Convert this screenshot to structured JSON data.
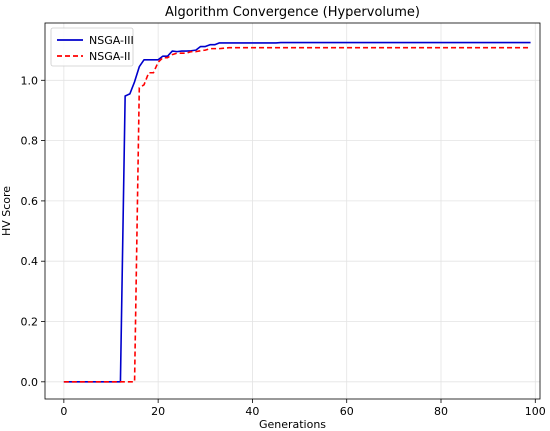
{
  "chart_data": {
    "type": "line",
    "title": "Algorithm Convergence (Hypervolume)",
    "xlabel": "Generations",
    "ylabel": "HV Score",
    "xlim": [
      -4,
      101
    ],
    "ylim": [
      -0.057,
      1.19
    ],
    "xticks": [
      0,
      20,
      40,
      60,
      80,
      100
    ],
    "yticks": [
      0.0,
      0.2,
      0.4,
      0.6,
      0.8,
      1.0
    ],
    "grid": true,
    "legend_position": "top-left",
    "series": [
      {
        "name": "NSGA-III",
        "color": "#0000cc",
        "style": "solid",
        "x": [
          0,
          1,
          2,
          3,
          4,
          5,
          6,
          7,
          8,
          9,
          10,
          11,
          12,
          13,
          14,
          15,
          16,
          17,
          18,
          19,
          20,
          21,
          22,
          23,
          24,
          25,
          26,
          27,
          28,
          29,
          30,
          31,
          32,
          33,
          34,
          35,
          40,
          45,
          46,
          50,
          60,
          70,
          80,
          90,
          99
        ],
        "y": [
          0,
          0,
          0,
          0,
          0,
          0,
          0,
          0,
          0,
          0,
          0,
          0,
          0,
          0.948,
          0.955,
          0.995,
          1.045,
          1.068,
          1.068,
          1.068,
          1.068,
          1.08,
          1.08,
          1.097,
          1.095,
          1.097,
          1.097,
          1.098,
          1.1,
          1.112,
          1.112,
          1.118,
          1.118,
          1.124,
          1.124,
          1.124,
          1.124,
          1.124,
          1.125,
          1.125,
          1.125,
          1.125,
          1.125,
          1.125,
          1.125
        ]
      },
      {
        "name": "NSGA-II",
        "color": "#ff0000",
        "style": "dashed",
        "x": [
          0,
          1,
          2,
          3,
          4,
          5,
          6,
          7,
          8,
          9,
          10,
          11,
          12,
          13,
          14,
          15,
          16,
          17,
          18,
          19,
          20,
          21,
          22,
          23,
          24,
          25,
          26,
          27,
          28,
          29,
          30,
          31,
          32,
          33,
          35,
          40,
          50,
          60,
          70,
          80,
          90,
          99
        ],
        "y": [
          0,
          0,
          0,
          0,
          0,
          0,
          0,
          0,
          0,
          0,
          0,
          0,
          0,
          0,
          0,
          0,
          0.975,
          0.985,
          1.025,
          1.025,
          1.06,
          1.075,
          1.075,
          1.085,
          1.09,
          1.09,
          1.09,
          1.095,
          1.095,
          1.098,
          1.1,
          1.105,
          1.105,
          1.105,
          1.108,
          1.108,
          1.108,
          1.108,
          1.108,
          1.108,
          1.108,
          1.108
        ]
      }
    ]
  }
}
